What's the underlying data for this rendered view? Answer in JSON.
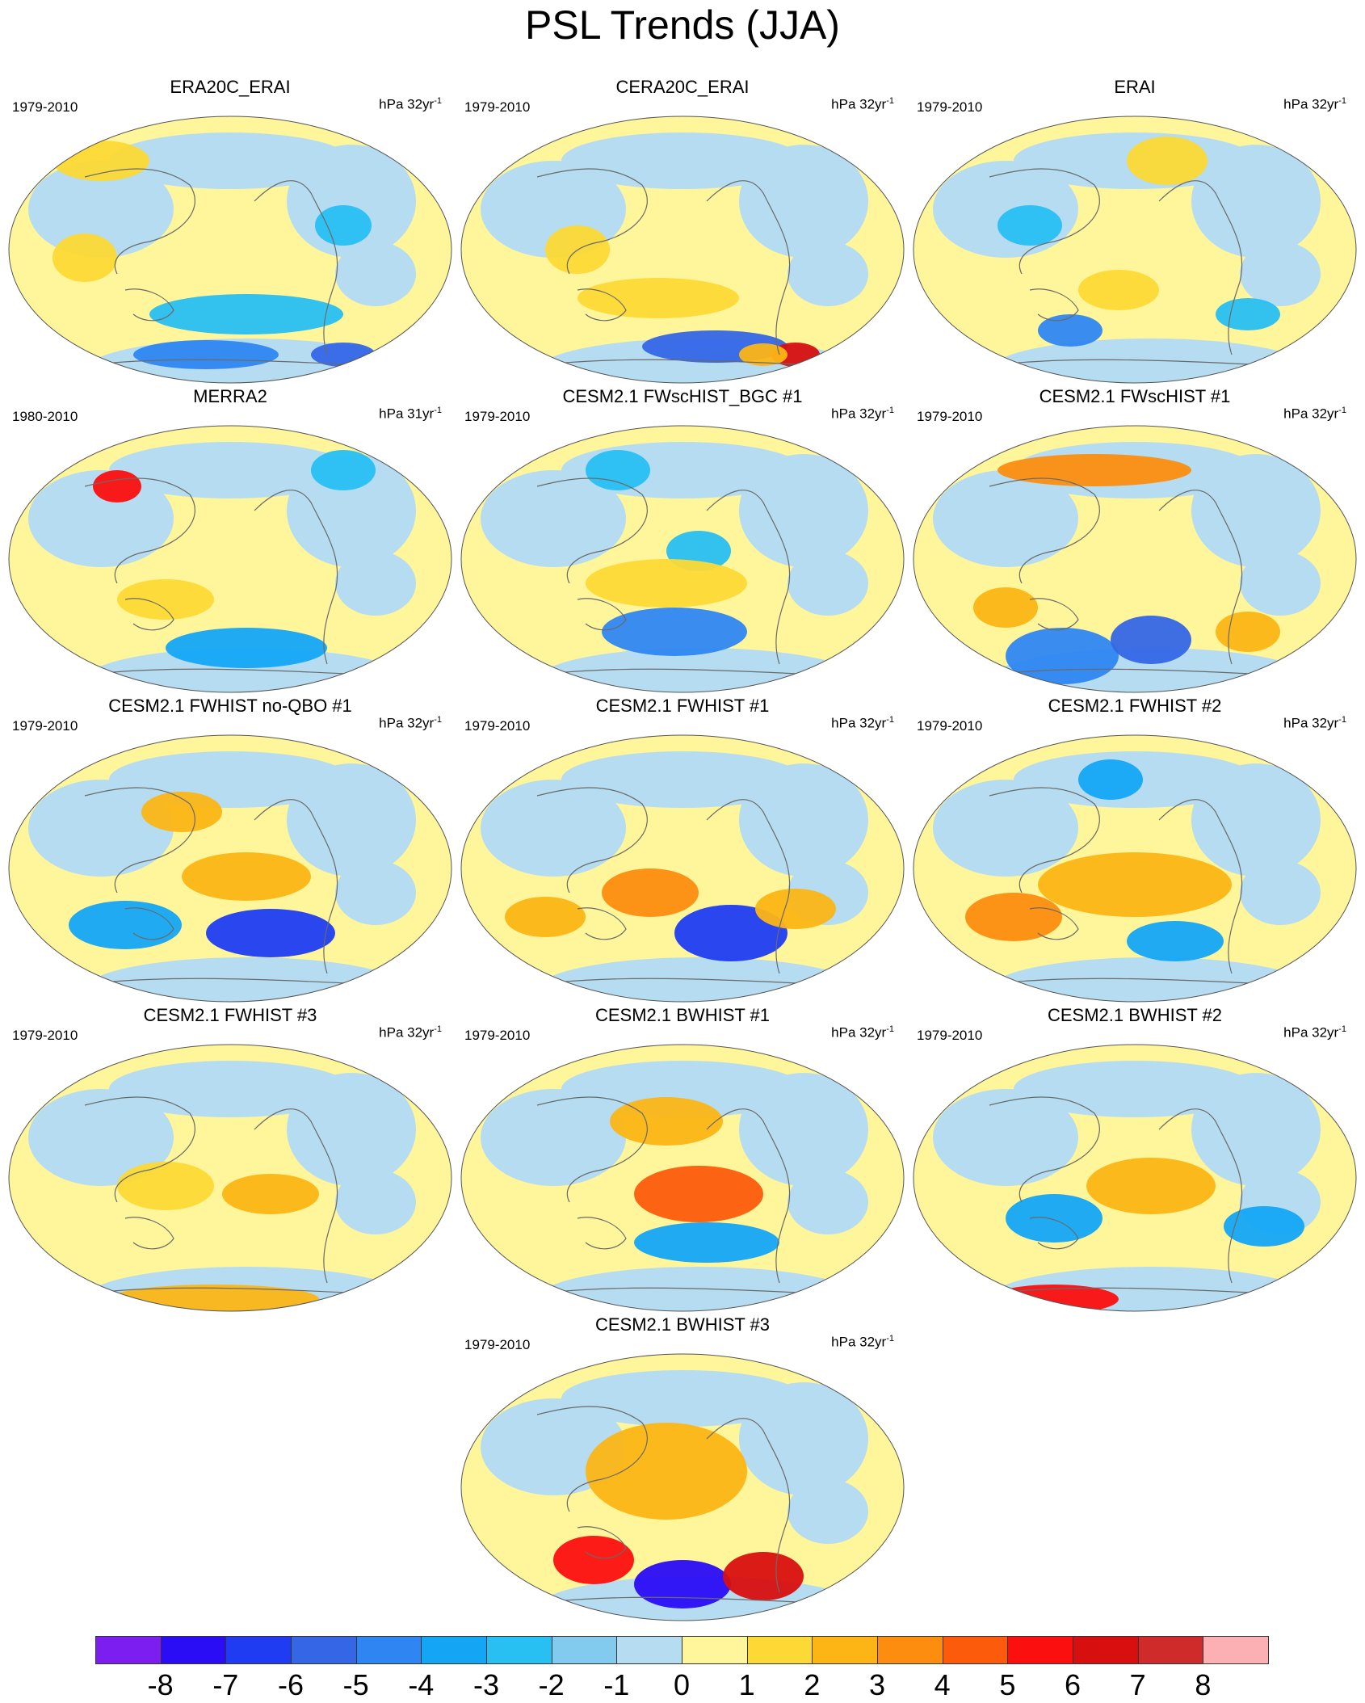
{
  "title": "PSL Trends (JJA)",
  "panels": [
    {
      "title": "ERA20C_ERAI",
      "period": "1979-2010",
      "units": "hPa 32yr",
      "units_exp": "-1"
    },
    {
      "title": "CERA20C_ERAI",
      "period": "1979-2010",
      "units": "hPa 32yr",
      "units_exp": "-1"
    },
    {
      "title": "ERAI",
      "period": "1979-2010",
      "units": "hPa 32yr",
      "units_exp": "-1"
    },
    {
      "title": "MERRA2",
      "period": "1980-2010",
      "units": "hPa 31yr",
      "units_exp": "-1"
    },
    {
      "title": "CESM2.1 FWscHIST_BGC #1",
      "period": "1979-2010",
      "units": "hPa 32yr",
      "units_exp": "-1"
    },
    {
      "title": "CESM2.1 FWscHIST #1",
      "period": "1979-2010",
      "units": "hPa 32yr",
      "units_exp": "-1"
    },
    {
      "title": "CESM2.1 FWHIST no-QBO #1",
      "period": "1979-2010",
      "units": "hPa 32yr",
      "units_exp": "-1"
    },
    {
      "title": "CESM2.1 FWHIST #1",
      "period": "1979-2010",
      "units": "hPa 32yr",
      "units_exp": "-1"
    },
    {
      "title": "CESM2.1 FWHIST #2",
      "period": "1979-2010",
      "units": "hPa 32yr",
      "units_exp": "-1"
    },
    {
      "title": "CESM2.1 FWHIST #3",
      "period": "1979-2010",
      "units": "hPa 32yr",
      "units_exp": "-1"
    },
    {
      "title": "CESM2.1 BWHIST #1",
      "period": "1979-2010",
      "units": "hPa 32yr",
      "units_exp": "-1"
    },
    {
      "title": "CESM2.1 BWHIST #2",
      "period": "1979-2010",
      "units": "hPa 32yr",
      "units_exp": "-1"
    },
    {
      "title": "CESM2.1 BWHIST #3",
      "period": "1979-2010",
      "units": "hPa 32yr",
      "units_exp": "-1"
    }
  ],
  "colorbar": {
    "labels": [
      "-8",
      "-7",
      "-6",
      "-5",
      "-4",
      "-3",
      "-2",
      "-1",
      "0",
      "1",
      "2",
      "3",
      "4",
      "5",
      "6",
      "7",
      "8"
    ],
    "colors": [
      "#7d1ef0",
      "#2a0cf5",
      "#1f3cf2",
      "#3466e6",
      "#2f86f2",
      "#14a5f5",
      "#28bff2",
      "#82cbef",
      "#b5dcf1",
      "#fff59b",
      "#fcd935",
      "#fcb515",
      "#fc8d0f",
      "#fc5b0b",
      "#fc0f0f",
      "#d80f0f",
      "#cf2b2b",
      "#fcb0b4"
    ]
  },
  "colors": {
    "ocean_neutral_pos": "#fff59b",
    "ocean_neutral_neg": "#b5dcf1",
    "coastline": "#6a6a6a"
  }
}
